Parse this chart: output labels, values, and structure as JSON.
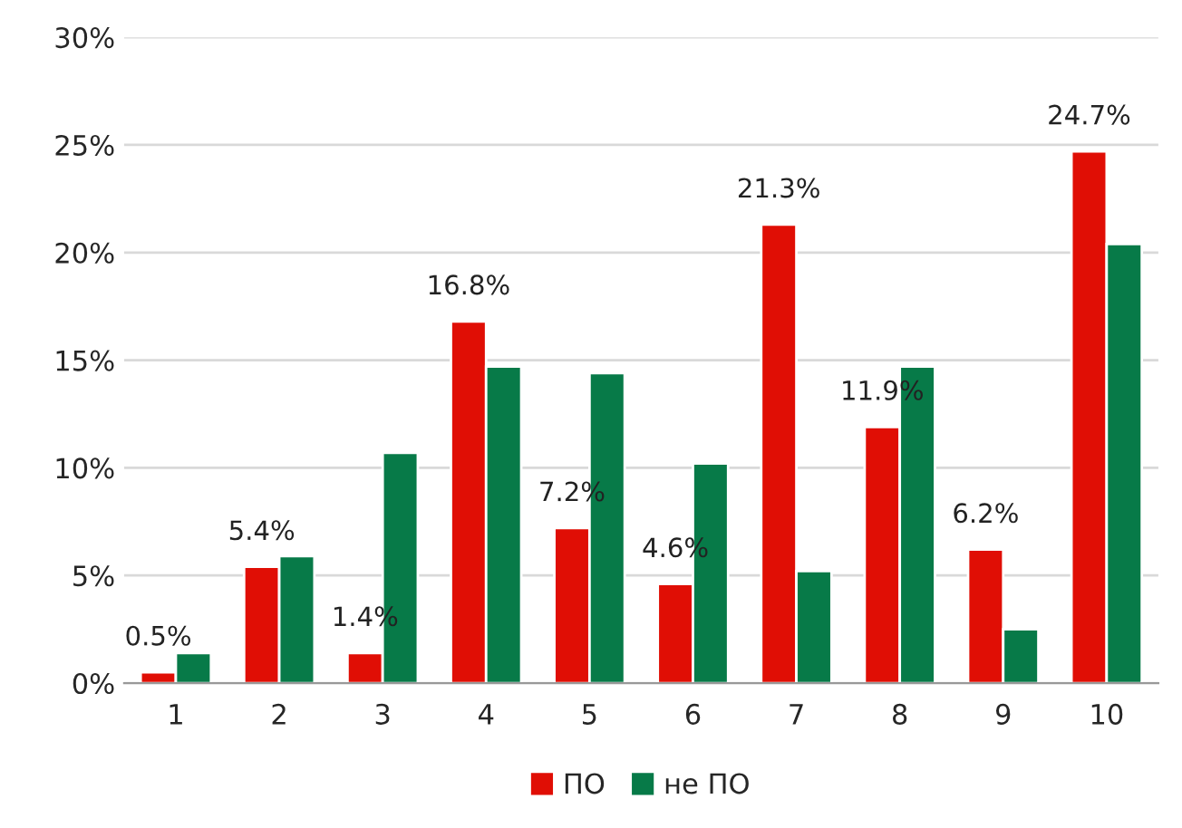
{
  "chart_data": {
    "type": "bar",
    "categories": [
      "1",
      "2",
      "3",
      "4",
      "5",
      "6",
      "7",
      "8",
      "9",
      "10"
    ],
    "series": [
      {
        "name": "ПО",
        "color": "#e00e05",
        "values": [
          0.5,
          5.4,
          1.4,
          16.8,
          7.2,
          4.6,
          21.3,
          11.9,
          6.2,
          24.7
        ],
        "value_labels": [
          "0.5%",
          "5.4%",
          "1.4%",
          "16.8%",
          "7.2%",
          "4.6%",
          "21.3%",
          "11.9%",
          "6.2%",
          "24.7%"
        ]
      },
      {
        "name": "не ПО",
        "color": "#077a48",
        "values": [
          1.4,
          5.9,
          10.7,
          14.7,
          14.4,
          10.2,
          5.2,
          14.7,
          2.5,
          20.4
        ]
      }
    ],
    "ylim": [
      0,
      30
    ],
    "yticks": [
      {
        "value": 0,
        "label": "0%"
      },
      {
        "value": 5,
        "label": "5%"
      },
      {
        "value": 10,
        "label": "10%"
      },
      {
        "value": 15,
        "label": "15%"
      },
      {
        "value": 20,
        "label": "20%"
      },
      {
        "value": 25,
        "label": "25%"
      },
      {
        "value": 30,
        "label": "30%"
      }
    ],
    "grid": "y",
    "legend": "bottom"
  }
}
